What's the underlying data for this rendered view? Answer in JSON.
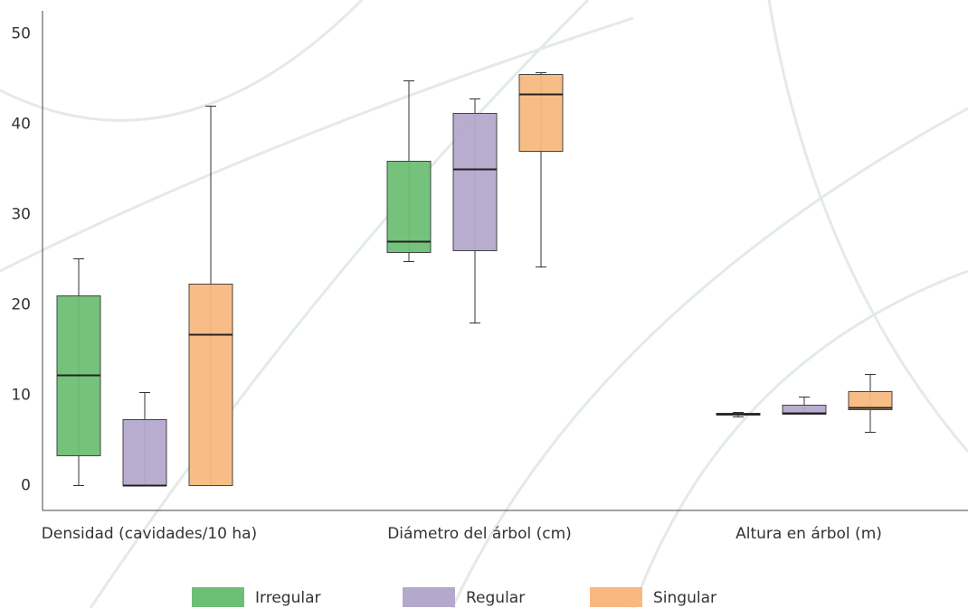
{
  "chart_data": {
    "type": "box",
    "categories": [
      "Densidad (cavidades/10 ha)",
      "Diámetro del árbol (cm)",
      "Altura en árbol (m)"
    ],
    "ylim": [
      -2.5,
      52.5
    ],
    "yticks": [
      0,
      10,
      20,
      30,
      40,
      50
    ],
    "series": [
      {
        "name": "Irregular",
        "color": "#6dbf75",
        "min": [
          0,
          24.8,
          7.6
        ],
        "q1": [
          3.3,
          25.8,
          7.8
        ],
        "median": [
          12.2,
          27,
          7.9
        ],
        "q3": [
          21,
          35.9,
          8.0
        ],
        "max": [
          25.1,
          44.8,
          8.1
        ]
      },
      {
        "name": "Regular",
        "color": "#b4a8cc",
        "min": [
          0,
          18,
          7.9
        ],
        "q1": [
          0,
          26,
          7.9
        ],
        "median": [
          0,
          35,
          8.0
        ],
        "q3": [
          7.3,
          41.2,
          8.9
        ],
        "max": [
          10.3,
          42.8,
          9.8
        ]
      },
      {
        "name": "Singular",
        "color": "#f8b880",
        "min": [
          0,
          24.2,
          5.9
        ],
        "q1": [
          0,
          37,
          8.4
        ],
        "median": [
          16.7,
          43.3,
          8.6
        ],
        "q3": [
          22.3,
          45.5,
          10.4
        ],
        "max": [
          42,
          45.7,
          12.3
        ]
      }
    ]
  }
}
